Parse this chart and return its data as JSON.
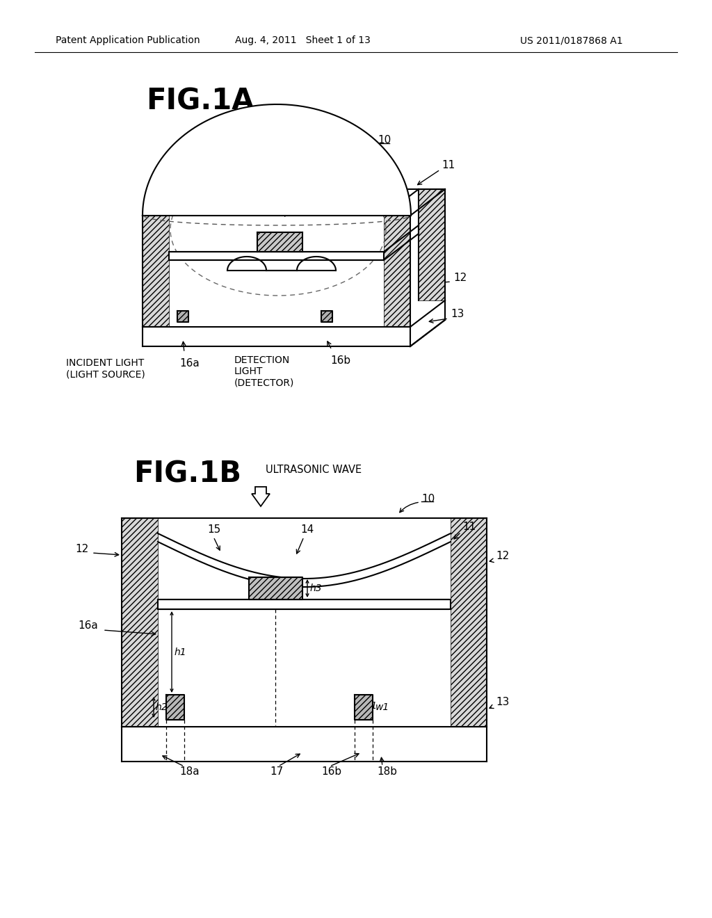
{
  "bg_color": "#ffffff",
  "header_left": "Patent Application Publication",
  "header_mid": "Aug. 4, 2011   Sheet 1 of 13",
  "header_right": "US 2011/0187868 A1",
  "fig1a_title": "FIG.1A",
  "fig1b_title": "FIG.1B",
  "fig1b_subtitle": "ULTRASONIC WAVE",
  "incident_light": "INCIDENT LIGHT\n(LIGHT SOURCE)",
  "detection_light": "DETECTION\nLIGHT\n(DETECTOR)"
}
